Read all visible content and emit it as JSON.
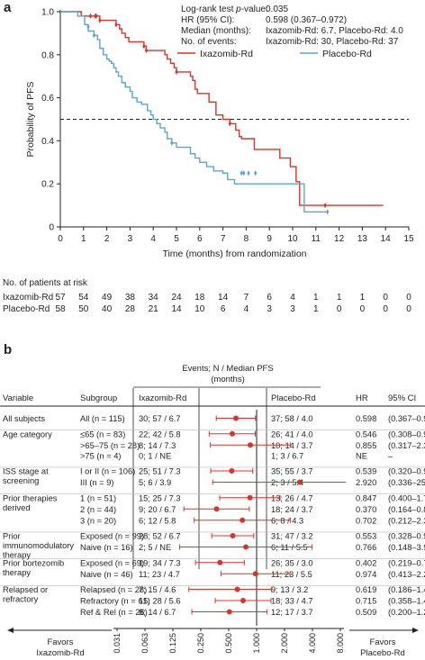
{
  "panel_a": {
    "label": "a",
    "stats_labels": [
      "Log-rank test ",
      "HR (95% CI):",
      "Median (months):",
      "No. of events:"
    ],
    "stats_p_italic": "p",
    "stats_p_suffix": "-value:",
    "stats_values": [
      "0.035",
      "0.598 (0.367–0.972)",
      "Ixazomib-Rd: 6.7, Placebo-Rd: 4.0",
      "Ixazomib-Rd: 30, Placebo-Rd: 37"
    ],
    "legend": [
      "Ixazomib-Rd",
      "Placebo-Rd"
    ],
    "ylabel": "Probability of PFS",
    "xlabel": "Time (months) from randomization",
    "at_risk_title": "No. of patients at risk",
    "at_risk_rows": [
      {
        "name": "Ixazomib-Rd",
        "values": [
          "57",
          "54",
          "49",
          "38",
          "34",
          "24",
          "18",
          "14",
          "7",
          "6",
          "4",
          "1",
          "1",
          "1",
          "0",
          "0"
        ]
      },
      {
        "name": "Placebo-Rd",
        "values": [
          "58",
          "50",
          "40",
          "28",
          "21",
          "14",
          "10",
          "6",
          "4",
          "3",
          "3",
          "1",
          "0",
          "0",
          "0",
          "0"
        ]
      }
    ]
  },
  "chart_data": [
    {
      "type": "line",
      "subtype": "kaplan-meier",
      "xlim": [
        0,
        15
      ],
      "ylim": [
        0,
        1.0
      ],
      "x_ticks": [
        "0",
        "1",
        "2",
        "3",
        "4",
        "5",
        "6",
        "7",
        "8",
        "9",
        "10",
        "11",
        "12",
        "13",
        "14",
        "15"
      ],
      "y_ticks": [
        "0",
        "0.2",
        "0.4",
        "0.6",
        "0.8",
        "1.0"
      ],
      "reference_line_y": 0.5,
      "series": [
        {
          "name": "Ixazomib-Rd",
          "color": "#d9342b",
          "steps": [
            [
              0,
              1.0
            ],
            [
              0.9,
              0.98
            ],
            [
              1.7,
              0.96
            ],
            [
              2.4,
              0.94
            ],
            [
              2.55,
              0.92
            ],
            [
              2.65,
              0.9
            ],
            [
              2.8,
              0.88
            ],
            [
              2.95,
              0.86
            ],
            [
              3.6,
              0.84
            ],
            [
              3.7,
              0.82
            ],
            [
              4.5,
              0.8
            ],
            [
              4.6,
              0.78
            ],
            [
              4.75,
              0.76
            ],
            [
              4.9,
              0.74
            ],
            [
              5.0,
              0.72
            ],
            [
              5.6,
              0.7
            ],
            [
              5.7,
              0.68
            ],
            [
              5.8,
              0.64
            ],
            [
              5.9,
              0.62
            ],
            [
              6.4,
              0.58
            ],
            [
              6.7,
              0.52
            ],
            [
              7.0,
              0.5
            ],
            [
              7.3,
              0.48
            ],
            [
              7.55,
              0.45
            ],
            [
              7.7,
              0.42
            ],
            [
              7.8,
              0.41
            ],
            [
              8.35,
              0.36
            ],
            [
              9.45,
              0.32
            ],
            [
              9.9,
              0.28
            ],
            [
              10.15,
              0.21
            ],
            [
              10.3,
              0.1
            ],
            [
              13.9,
              0.1
            ]
          ],
          "censor": [
            [
              1.3,
              0.98
            ],
            [
              1.5,
              0.98
            ],
            [
              1.55,
              0.98
            ],
            [
              1.7,
              0.96
            ],
            [
              2.4,
              0.94
            ],
            [
              3.6,
              0.84
            ],
            [
              3.7,
              0.82
            ],
            [
              5.0,
              0.72
            ],
            [
              7.3,
              0.48
            ],
            [
              11.4,
              0.1
            ]
          ]
        },
        {
          "name": "Placebo-Rd",
          "color": "#5ea6c8",
          "steps": [
            [
              0,
              1.0
            ],
            [
              0.75,
              0.98
            ],
            [
              1.05,
              0.94
            ],
            [
              1.2,
              0.91
            ],
            [
              1.45,
              0.89
            ],
            [
              1.6,
              0.87
            ],
            [
              1.7,
              0.83
            ],
            [
              1.85,
              0.8
            ],
            [
              2.0,
              0.78
            ],
            [
              2.1,
              0.77
            ],
            [
              2.2,
              0.76
            ],
            [
              2.3,
              0.74
            ],
            [
              2.4,
              0.72
            ],
            [
              2.5,
              0.7
            ],
            [
              2.65,
              0.67
            ],
            [
              2.8,
              0.65
            ],
            [
              3.0,
              0.63
            ],
            [
              3.1,
              0.6
            ],
            [
              3.3,
              0.58
            ],
            [
              3.5,
              0.57
            ],
            [
              3.75,
              0.54
            ],
            [
              3.9,
              0.52
            ],
            [
              4.0,
              0.5
            ],
            [
              4.15,
              0.48
            ],
            [
              4.3,
              0.46
            ],
            [
              4.5,
              0.44
            ],
            [
              4.6,
              0.41
            ],
            [
              4.8,
              0.39
            ],
            [
              5.0,
              0.37
            ],
            [
              5.6,
              0.34
            ],
            [
              5.8,
              0.32
            ],
            [
              6.0,
              0.3
            ],
            [
              6.3,
              0.28
            ],
            [
              6.6,
              0.26
            ],
            [
              7.0,
              0.25
            ],
            [
              7.2,
              0.22
            ],
            [
              7.5,
              0.2
            ],
            [
              10.5,
              0.07
            ],
            [
              11.5,
              0.07
            ]
          ],
          "censor": [
            [
              1.2,
              0.93
            ],
            [
              1.45,
              0.89
            ],
            [
              4.8,
              0.39
            ],
            [
              7.8,
              0.25
            ],
            [
              7.9,
              0.25
            ],
            [
              8.1,
              0.25
            ],
            [
              8.4,
              0.25
            ],
            [
              11.5,
              0.07
            ]
          ]
        }
      ]
    },
    {
      "type": "scatter",
      "subtype": "forest-plot",
      "x_scale": "log2",
      "x_ticks": [
        "0.031",
        "0.063",
        "0.125",
        "0.250",
        "0.500",
        "1.000",
        "2.000",
        "4.000",
        "8.000"
      ],
      "reference_x": 1.0,
      "rows": [
        {
          "variable": [
            "All subjects"
          ],
          "subgroup": "All (n = 115)",
          "ixa": "30; 57 / 6.7",
          "plac": "37; 58 / 4.0",
          "hr": "0.598",
          "ci": "(0.367–0.972)",
          "hr_value": 0.598,
          "lo": 0.367,
          "hi": 0.972
        },
        {
          "variable": [
            "Age category"
          ],
          "subgroup": "≤65 (n = 83)",
          "ixa": "22; 42 / 5.8",
          "plac": "26; 41 / 4.0",
          "hr": "0.546",
          "ci": "(0.308–0.967)",
          "hr_value": 0.546,
          "lo": 0.308,
          "hi": 0.967
        },
        {
          "variable": [],
          "subgroup": ">65–75 (n = 28)",
          "ixa": "8; 14 / 7.3",
          "plac": "10; 14 / 3.7",
          "hr": "0.855",
          "ci": "(0.317–2.305)",
          "hr_value": 0.855,
          "lo": 0.317,
          "hi": 2.305
        },
        {
          "variable": [],
          "subgroup": ">75 (n = 4)",
          "ixa": "0; 1 / NE",
          "plac": "1; 3 / 6.7",
          "hr": "NE",
          "ci": "–",
          "hr_value": null,
          "lo": null,
          "hi": null
        },
        {
          "variable": [
            "ISS stage at",
            "screening"
          ],
          "subgroup": "I or II (n = 106)",
          "ixa": "25; 51 / 7.3",
          "plac": "35; 55 / 3.7",
          "hr": "0.539",
          "ci": "(0.320–0.908)",
          "hr_value": 0.539,
          "lo": 0.32,
          "hi": 0.908
        },
        {
          "variable": [],
          "subgroup": "III (n = 9)",
          "ixa": "5; 6 / 3.9",
          "plac": "2; 3 / 5.4",
          "hr": "2.920",
          "ci": "(0.336–25.373)",
          "hr_value": 2.92,
          "lo": 0.336,
          "hi": 25.373
        },
        {
          "variable": [
            "Prior therapies",
            "derived"
          ],
          "subgroup": "1 (n = 51)",
          "ixa": "15; 25 / 7.3",
          "plac": "13; 26 / 4.7",
          "hr": "0.847",
          "ci": "(0.400–1.789)",
          "hr_value": 0.847,
          "lo": 0.4,
          "hi": 1.789
        },
        {
          "variable": [],
          "subgroup": "2 (n = 44)",
          "ixa": "9; 20 / 6.7",
          "plac": "18; 24 / 3.7",
          "hr": "0.370",
          "ci": "(0.164–0.834)",
          "hr_value": 0.37,
          "lo": 0.164,
          "hi": 0.834
        },
        {
          "variable": [],
          "subgroup": "3 (n = 20)",
          "ixa": "6; 12 / 5.8",
          "plac": "6; 8 / 4.3",
          "hr": "0.702",
          "ci": "(0.212–2.319)",
          "hr_value": 0.702,
          "lo": 0.212,
          "hi": 2.319
        },
        {
          "variable": [
            "Prior",
            "immunomodulatory",
            "therapy"
          ],
          "subgroup": "Exposed (n = 99)",
          "ixa": "28; 52 / 6.7",
          "plac": "31; 47 / 3.2",
          "hr": "0.553",
          "ci": "(0.328–0.931)",
          "hr_value": 0.553,
          "lo": 0.328,
          "hi": 0.931
        },
        {
          "variable": [],
          "subgroup": "Naive (n = 16)",
          "ixa": "2; 5 / NE",
          "plac": "6; 11 / 5.5",
          "hr": "0.766",
          "ci": "(0.148–3.964)",
          "hr_value": 0.766,
          "lo": 0.148,
          "hi": 3.964
        },
        {
          "variable": [
            "Prior bortezomib",
            "therapy"
          ],
          "subgroup": "Exposed (n = 69)",
          "ixa": "19; 34 / 7.3",
          "plac": "26; 35 / 3.0",
          "hr": "0.402",
          "ci": "(0.219–0.737)",
          "hr_value": 0.402,
          "lo": 0.219,
          "hi": 0.737
        },
        {
          "variable": [],
          "subgroup": "Naive (n = 46)",
          "ixa": "11; 23 / 4.7",
          "plac": "11; 23 / 5.5",
          "hr": "0.974",
          "ci": "(0.413–2.296)",
          "hr_value": 0.974,
          "lo": 0.413,
          "hi": 2.296
        },
        {
          "variable": [
            "Relapsed or",
            "refractory"
          ],
          "subgroup": "Relapsed (n = 28)",
          "ixa": "7; 15 / 4.6",
          "plac": "9; 13 / 3.2",
          "hr": "0.619",
          "ci": "(0.186–1.449)",
          "hr_value": 0.619,
          "lo": 0.186,
          "hi": 1.449
        },
        {
          "variable": [],
          "subgroup": "Refractory (n = 61)",
          "ixa": "15; 28 / 5.6",
          "plac": "18; 33 / 4.7",
          "hr": "0.715",
          "ci": "(0.358–1.429)",
          "hr_value": 0.715,
          "lo": 0.358,
          "hi": 1.429
        },
        {
          "variable": [],
          "subgroup": "Ref & Rel (n = 26)",
          "ixa": "8; 14 / 6.7",
          "plac": "12; 17 / 3.7",
          "hr": "0.509",
          "ci": "(0.200–1.297)",
          "hr_value": 0.509,
          "lo": 0.2,
          "hi": 1.297
        }
      ]
    }
  ],
  "panel_b": {
    "label": "b",
    "group_header": [
      "Events; N / Median PFS",
      "(months)"
    ],
    "col_headers": {
      "variable": "Variable",
      "subgroup": "Subgroup",
      "ixa": "Ixazomib-Rd",
      "plac": "Placebo-Rd",
      "hr": "HR",
      "ci": "95% CI"
    },
    "favors_left": [
      "Favors",
      "Ixazomib-Rd"
    ],
    "favors_right": [
      "Favors",
      "Placebo-Rd"
    ],
    "marker_color": "#d9342b"
  }
}
